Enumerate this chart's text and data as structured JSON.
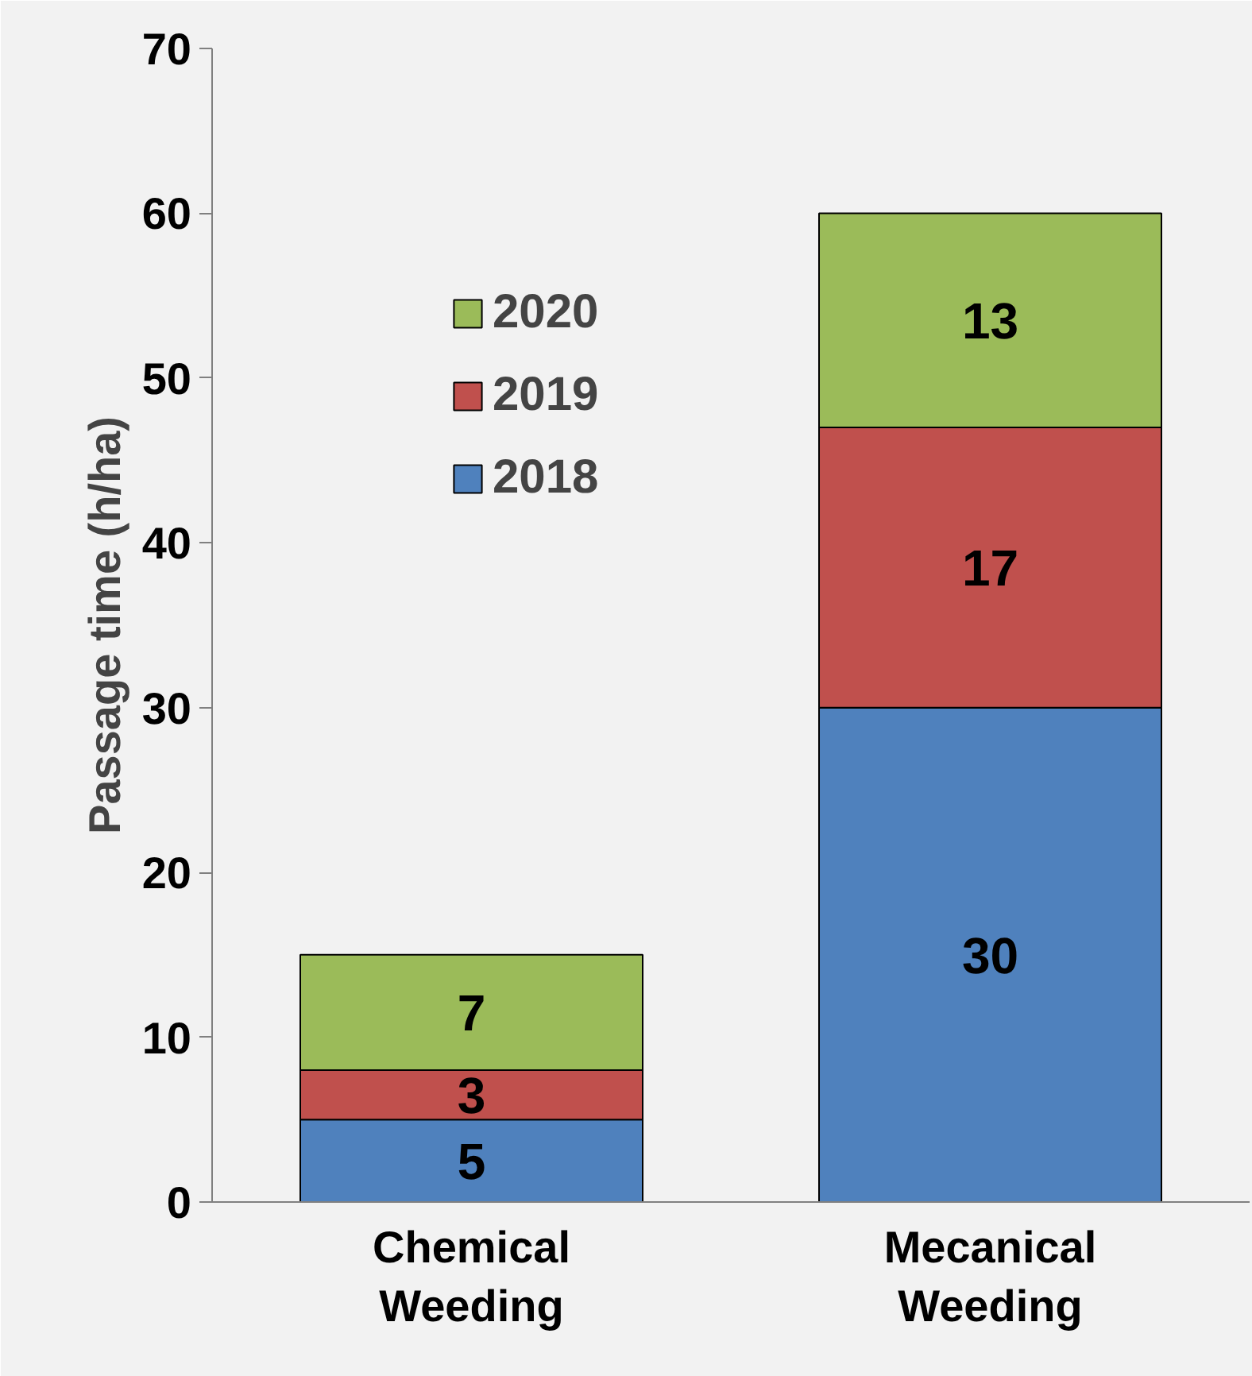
{
  "chart_data": {
    "type": "bar",
    "stacked": true,
    "ylabel": "Passage time (h/ha)",
    "categories": [
      "Chemical\nWeeding",
      "Mecanical\nWeeding"
    ],
    "series": [
      {
        "name": "2018",
        "color": "#4f81bd",
        "values": [
          5,
          30
        ]
      },
      {
        "name": "2019",
        "color": "#c0504d",
        "values": [
          3,
          17
        ]
      },
      {
        "name": "2020",
        "color": "#9bbb59",
        "values": [
          7,
          13
        ]
      }
    ],
    "ylim": [
      0,
      70
    ],
    "yticks": [
      0,
      10,
      20,
      30,
      40,
      50,
      60,
      70
    ],
    "data_labels": true,
    "grid": false,
    "legend": "top left"
  }
}
